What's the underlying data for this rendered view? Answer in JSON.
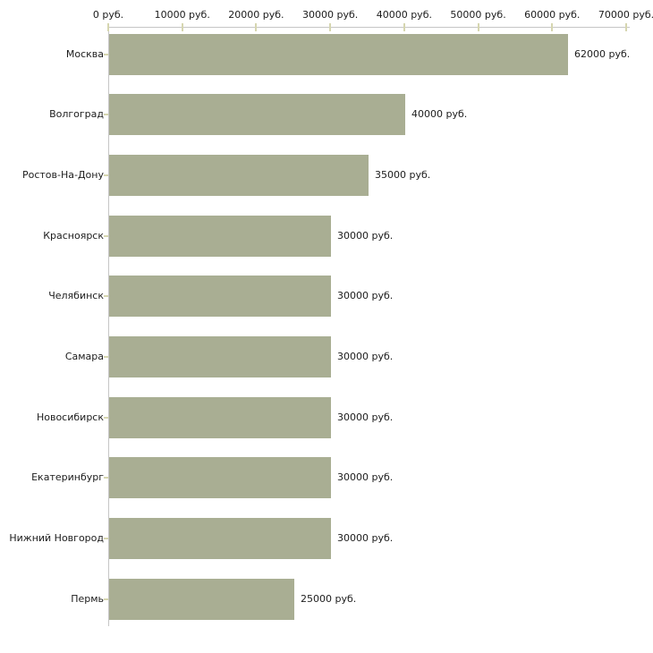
{
  "chart_data": {
    "type": "bar",
    "orientation": "horizontal",
    "title": "",
    "categories": [
      "Москва",
      "Волгоград",
      "Ростов-На-Дону",
      "Красноярск",
      "Челябинск",
      "Самара",
      "Новосибирск",
      "Екатеринбург",
      "Нижний Новгород",
      "Пермь"
    ],
    "values": [
      62000,
      40000,
      35000,
      30000,
      30000,
      30000,
      30000,
      30000,
      30000,
      25000
    ],
    "value_labels": [
      "62000 руб.",
      "40000 руб.",
      "35000 руб.",
      "30000 руб.",
      "30000 руб.",
      "30000 руб.",
      "30000 руб.",
      "30000 руб.",
      "30000 руб.",
      "25000 руб."
    ],
    "x_tick_values": [
      0,
      10000,
      20000,
      30000,
      40000,
      50000,
      60000,
      70000
    ],
    "x_tick_labels": [
      "0 руб.",
      "10000 руб.",
      "20000 руб.",
      "30000 руб.",
      "40000 руб.",
      "50000 руб.",
      "60000 руб.",
      "70000 руб."
    ],
    "xlim": [
      0,
      70000
    ],
    "unit": "руб.",
    "xlabel": "",
    "ylabel": "",
    "legend": "none",
    "grid": "off",
    "colors": {
      "bar": "#a9ae93",
      "axis": "#c6c6c6",
      "tick": "#d6d6b0",
      "text": "#1c1c1c",
      "background": "#ffffff"
    }
  }
}
